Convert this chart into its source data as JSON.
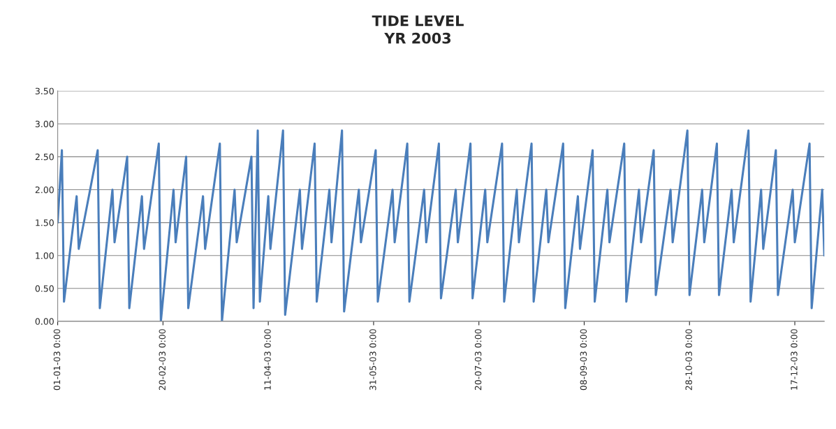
{
  "chart_data": {
    "type": "line",
    "title": "TIDE LEVEL\nYR 2003",
    "x": [
      "2003-01-01",
      "2003-01-03",
      "2003-01-04",
      "2003-01-10",
      "2003-01-11",
      "2003-01-20",
      "2003-01-21",
      "2003-01-27",
      "2003-01-28",
      "2003-02-03",
      "2003-02-04",
      "2003-02-10",
      "2003-02-11",
      "2003-02-18",
      "2003-02-19",
      "2003-02-25",
      "2003-02-26",
      "2003-03-03",
      "2003-03-04",
      "2003-03-11",
      "2003-03-12",
      "2003-03-19",
      "2003-03-20",
      "2003-03-26",
      "2003-03-27",
      "2003-04-03",
      "2003-04-04",
      "2003-04-06",
      "2003-04-07",
      "2003-04-11",
      "2003-04-12",
      "2003-04-18",
      "2003-04-19",
      "2003-04-26",
      "2003-04-27",
      "2003-05-03",
      "2003-05-04",
      "2003-05-10",
      "2003-05-11",
      "2003-05-16",
      "2003-05-17",
      "2003-05-24",
      "2003-05-25",
      "2003-06-01",
      "2003-06-02",
      "2003-06-09",
      "2003-06-10",
      "2003-06-16",
      "2003-06-17",
      "2003-06-24",
      "2003-06-25",
      "2003-07-01",
      "2003-07-02",
      "2003-07-09",
      "2003-07-10",
      "2003-07-16",
      "2003-07-17",
      "2003-07-23",
      "2003-07-24",
      "2003-07-31",
      "2003-08-01",
      "2003-08-07",
      "2003-08-08",
      "2003-08-14",
      "2003-08-15",
      "2003-08-21",
      "2003-08-22",
      "2003-08-29",
      "2003-08-30",
      "2003-09-05",
      "2003-09-06",
      "2003-09-12",
      "2003-09-13",
      "2003-09-19",
      "2003-09-20",
      "2003-09-27",
      "2003-09-28",
      "2003-10-04",
      "2003-10-05",
      "2003-10-11",
      "2003-10-12",
      "2003-10-19",
      "2003-10-20",
      "2003-10-27",
      "2003-10-28",
      "2003-11-03",
      "2003-11-04",
      "2003-11-10",
      "2003-11-11",
      "2003-11-17",
      "2003-11-18",
      "2003-11-25",
      "2003-11-26",
      "2003-12-01",
      "2003-12-02",
      "2003-12-08",
      "2003-12-09",
      "2003-12-16",
      "2003-12-17",
      "2003-12-24",
      "2003-12-25",
      "2003-12-30",
      "2003-12-31"
    ],
    "series": [
      {
        "color": "#4a7ebb",
        "values": [
          1.5,
          2.6,
          0.3,
          1.9,
          1.1,
          2.6,
          0.2,
          2.0,
          1.2,
          2.5,
          0.2,
          1.9,
          1.1,
          2.7,
          0.0,
          2.0,
          1.2,
          2.5,
          0.2,
          1.9,
          1.1,
          2.7,
          0.0,
          2.0,
          1.2,
          2.5,
          0.2,
          2.9,
          0.3,
          1.9,
          1.1,
          2.9,
          0.1,
          2.0,
          1.1,
          2.7,
          0.3,
          2.0,
          1.2,
          2.9,
          0.15,
          2.0,
          1.2,
          2.6,
          0.3,
          2.0,
          1.2,
          2.7,
          0.3,
          2.0,
          1.2,
          2.7,
          0.35,
          2.0,
          1.2,
          2.7,
          0.35,
          2.0,
          1.2,
          2.7,
          0.3,
          2.0,
          1.2,
          2.7,
          0.3,
          2.0,
          1.2,
          2.7,
          0.2,
          1.9,
          1.1,
          2.6,
          0.3,
          2.0,
          1.2,
          2.7,
          0.3,
          2.0,
          1.2,
          2.6,
          0.4,
          2.0,
          1.2,
          2.9,
          0.4,
          2.0,
          1.2,
          2.7,
          0.4,
          2.0,
          1.2,
          2.9,
          0.3,
          2.0,
          1.1,
          2.6,
          0.4,
          2.0,
          1.2,
          2.7,
          0.2,
          2.0,
          1.0
        ]
      }
    ],
    "xlim": [
      "2003-01-01",
      "2003-12-31"
    ],
    "xticks": [
      {
        "value": "2003-01-01",
        "label": "01-01-03 0:00"
      },
      {
        "value": "2003-02-20",
        "label": "20-02-03 0:00"
      },
      {
        "value": "2003-04-11",
        "label": "11-04-03 0:00"
      },
      {
        "value": "2003-05-31",
        "label": "31-05-03 0:00"
      },
      {
        "value": "2003-07-20",
        "label": "20-07-03 0:00"
      },
      {
        "value": "2003-09-08",
        "label": "08-09-03 0:00"
      },
      {
        "value": "2003-10-28",
        "label": "28-10-03 0:00"
      },
      {
        "value": "2003-12-17",
        "label": "17-12-03 0:00"
      }
    ],
    "ylim": [
      0,
      3.5
    ],
    "yticks": [
      {
        "value": 0,
        "label": "0.00"
      },
      {
        "value": 0.5,
        "label": "0.50"
      },
      {
        "value": 1,
        "label": "1.00"
      },
      {
        "value": 1.5,
        "label": "1.50"
      },
      {
        "value": 2,
        "label": "2.00"
      },
      {
        "value": 2.5,
        "label": "2.50"
      },
      {
        "value": 3,
        "label": "3.00"
      },
      {
        "value": 3.5,
        "label": "3.50"
      }
    ],
    "grid": "y",
    "marker": "none",
    "line_style": "solid"
  }
}
